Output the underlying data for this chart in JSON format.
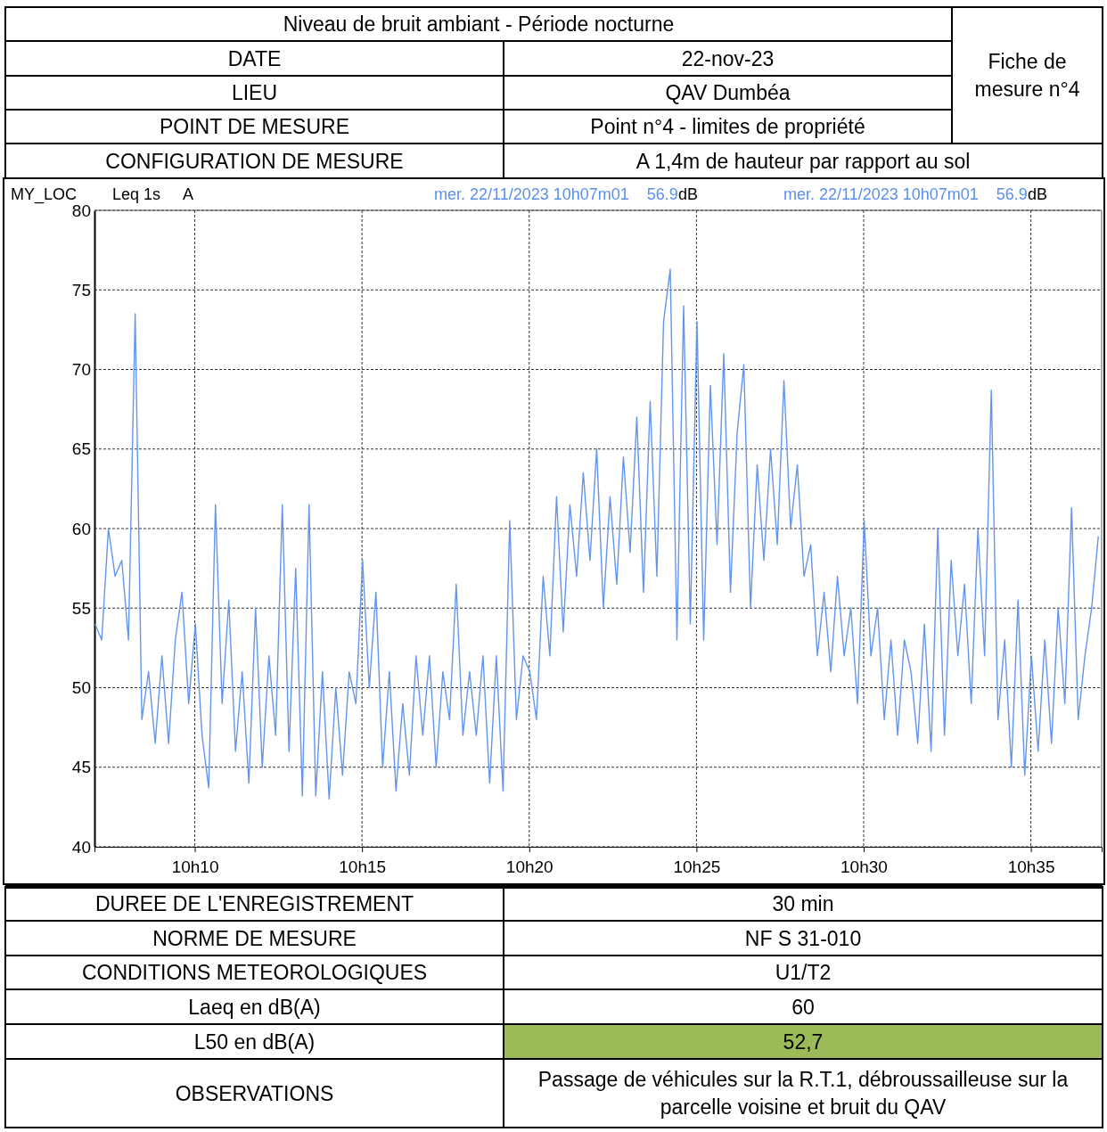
{
  "chart_data": {
    "type": "line",
    "title": "Niveau de bruit ambiant - Période nocturne",
    "x": [
      "2023-11-22T10:07:01",
      "2023-11-22T10:07:13",
      "2023-11-22T10:07:25",
      "2023-11-22T10:07:37",
      "2023-11-22T10:07:49",
      "2023-11-22T10:08:01",
      "2023-11-22T10:08:13",
      "2023-11-22T10:08:25",
      "2023-11-22T10:08:37",
      "2023-11-22T10:08:49",
      "2023-11-22T10:09:01",
      "2023-11-22T10:09:13",
      "2023-11-22T10:09:25",
      "2023-11-22T10:09:37",
      "2023-11-22T10:09:49",
      "2023-11-22T10:10:01",
      "2023-11-22T10:10:13",
      "2023-11-22T10:10:25",
      "2023-11-22T10:10:37",
      "2023-11-22T10:10:49",
      "2023-11-22T10:11:01",
      "2023-11-22T10:11:13",
      "2023-11-22T10:11:25",
      "2023-11-22T10:11:37",
      "2023-11-22T10:11:49",
      "2023-11-22T10:12:01",
      "2023-11-22T10:12:13",
      "2023-11-22T10:12:25",
      "2023-11-22T10:12:37",
      "2023-11-22T10:12:49",
      "2023-11-22T10:13:01",
      "2023-11-22T10:13:13",
      "2023-11-22T10:13:25",
      "2023-11-22T10:13:37",
      "2023-11-22T10:13:49",
      "2023-11-22T10:14:01",
      "2023-11-22T10:14:13",
      "2023-11-22T10:14:25",
      "2023-11-22T10:14:37",
      "2023-11-22T10:14:49",
      "2023-11-22T10:15:01",
      "2023-11-22T10:15:13",
      "2023-11-22T10:15:25",
      "2023-11-22T10:15:37",
      "2023-11-22T10:15:49",
      "2023-11-22T10:16:01",
      "2023-11-22T10:16:13",
      "2023-11-22T10:16:25",
      "2023-11-22T10:16:37",
      "2023-11-22T10:16:49",
      "2023-11-22T10:17:01",
      "2023-11-22T10:17:13",
      "2023-11-22T10:17:25",
      "2023-11-22T10:17:37",
      "2023-11-22T10:17:49",
      "2023-11-22T10:18:01",
      "2023-11-22T10:18:13",
      "2023-11-22T10:18:25",
      "2023-11-22T10:18:37",
      "2023-11-22T10:18:49",
      "2023-11-22T10:19:01",
      "2023-11-22T10:19:13",
      "2023-11-22T10:19:25",
      "2023-11-22T10:19:37",
      "2023-11-22T10:19:49",
      "2023-11-22T10:20:01",
      "2023-11-22T10:20:13",
      "2023-11-22T10:20:25",
      "2023-11-22T10:20:37",
      "2023-11-22T10:20:49",
      "2023-11-22T10:21:01",
      "2023-11-22T10:21:13",
      "2023-11-22T10:21:25",
      "2023-11-22T10:21:37",
      "2023-11-22T10:21:49",
      "2023-11-22T10:22:01",
      "2023-11-22T10:22:13",
      "2023-11-22T10:22:25",
      "2023-11-22T10:22:37",
      "2023-11-22T10:22:49",
      "2023-11-22T10:23:01",
      "2023-11-22T10:23:13",
      "2023-11-22T10:23:25",
      "2023-11-22T10:23:37",
      "2023-11-22T10:23:49",
      "2023-11-22T10:24:01",
      "2023-11-22T10:24:13",
      "2023-11-22T10:24:25",
      "2023-11-22T10:24:37",
      "2023-11-22T10:24:49",
      "2023-11-22T10:25:01",
      "2023-11-22T10:25:13",
      "2023-11-22T10:25:25",
      "2023-11-22T10:25:37",
      "2023-11-22T10:25:49",
      "2023-11-22T10:26:01",
      "2023-11-22T10:26:13",
      "2023-11-22T10:26:25",
      "2023-11-22T10:26:37",
      "2023-11-22T10:26:49",
      "2023-11-22T10:27:01",
      "2023-11-22T10:27:13",
      "2023-11-22T10:27:25",
      "2023-11-22T10:27:37",
      "2023-11-22T10:27:49",
      "2023-11-22T10:28:01",
      "2023-11-22T10:28:13",
      "2023-11-22T10:28:25",
      "2023-11-22T10:28:37",
      "2023-11-22T10:28:49",
      "2023-11-22T10:29:01",
      "2023-11-22T10:29:13",
      "2023-11-22T10:29:25",
      "2023-11-22T10:29:37",
      "2023-11-22T10:29:49",
      "2023-11-22T10:30:01",
      "2023-11-22T10:30:13",
      "2023-11-22T10:30:25",
      "2023-11-22T10:30:37",
      "2023-11-22T10:30:49",
      "2023-11-22T10:31:01",
      "2023-11-22T10:31:13",
      "2023-11-22T10:31:25",
      "2023-11-22T10:31:37",
      "2023-11-22T10:31:49",
      "2023-11-22T10:32:01",
      "2023-11-22T10:32:13",
      "2023-11-22T10:32:25",
      "2023-11-22T10:32:37",
      "2023-11-22T10:32:49",
      "2023-11-22T10:33:01",
      "2023-11-22T10:33:13",
      "2023-11-22T10:33:25",
      "2023-11-22T10:33:37",
      "2023-11-22T10:33:49",
      "2023-11-22T10:34:01",
      "2023-11-22T10:34:13",
      "2023-11-22T10:34:25",
      "2023-11-22T10:34:37",
      "2023-11-22T10:34:49",
      "2023-11-22T10:35:01",
      "2023-11-22T10:35:13",
      "2023-11-22T10:35:25",
      "2023-11-22T10:35:37",
      "2023-11-22T10:35:49",
      "2023-11-22T10:36:01",
      "2023-11-22T10:36:13",
      "2023-11-22T10:36:25",
      "2023-11-22T10:36:37",
      "2023-11-22T10:36:49",
      "2023-11-22T10:37:01"
    ],
    "series": [
      {
        "color": "#6495ed",
        "values": [
          54,
          53,
          60,
          57,
          58,
          53,
          73.5,
          48,
          51,
          46.5,
          52,
          46.5,
          53,
          56,
          49,
          54,
          47,
          43.7,
          61.5,
          49,
          55.5,
          46,
          51,
          44,
          55,
          45,
          52,
          47,
          61.5,
          46,
          57.5,
          43.2,
          61.5,
          43.2,
          51,
          43,
          50,
          44.5,
          51,
          49,
          58,
          50,
          56,
          45,
          51,
          43.5,
          49,
          44.5,
          52,
          47,
          52,
          45,
          51,
          48,
          56.5,
          47,
          51,
          47,
          52,
          44,
          52,
          43.5,
          60.5,
          48,
          52,
          51,
          48,
          57,
          52,
          62,
          53.5,
          61.5,
          57,
          63.5,
          58,
          65,
          55,
          62,
          56.5,
          64.5,
          58.5,
          67,
          56,
          68,
          57,
          73,
          76.3,
          53,
          74,
          54,
          73,
          53,
          69,
          59,
          71,
          56,
          66,
          70.3,
          55,
          64,
          58,
          65,
          59,
          69.3,
          60,
          64,
          57,
          59,
          52,
          56,
          51,
          57,
          52,
          55,
          49,
          60.5,
          52,
          55,
          48,
          53,
          47,
          53,
          51,
          46.5,
          54,
          46,
          60,
          47,
          58,
          52,
          56.5,
          49,
          60,
          52,
          68.7,
          48,
          53,
          45,
          55.5,
          44.5,
          52,
          46,
          53,
          46.5,
          55,
          49,
          61.3,
          48,
          52,
          55,
          59.5
        ]
      }
    ],
    "xlim": [
      "2023-11-22T10:07:00",
      "2023-11-22T10:37:07"
    ],
    "xticks": [
      {
        "value": "2023-11-22T10:10",
        "label": "10h10"
      },
      {
        "value": "2023-11-22T10:15",
        "label": "10h15"
      },
      {
        "value": "2023-11-22T10:20",
        "label": "10h20"
      },
      {
        "value": "2023-11-22T10:25",
        "label": "10h25"
      },
      {
        "value": "2023-11-22T10:30",
        "label": "10h30"
      },
      {
        "value": "2023-11-22T10:35",
        "label": "10h35"
      }
    ],
    "ylim": [
      40,
      80
    ],
    "yticks": [
      40,
      45,
      50,
      55,
      60,
      65,
      70,
      75,
      80
    ],
    "grid": true,
    "line_style": "solid",
    "marker": "none",
    "annotations": [
      "DATE",
      "22-nov-23",
      "LIEU",
      "QAV Dumbéa",
      "POINT DE MESURE",
      "Point n°4 - limites de propriété",
      "CONFIGURATION DE MESURE",
      "A 1,4m de hauteur par rapport au sol",
      "Fiche de mesure n°4",
      "MY_LOC",
      "Leq 1s",
      "A",
      "mer. 22/11/2023 10h07m01",
      "56.9",
      "dB",
      "mer. 22/11/2023 10h07m01",
      "56.9",
      "dB",
      "DUREE DE L'ENREGISTREMENT",
      "30 min",
      "NORME DE MESURE",
      "NF S 31-010",
      "CONDITIONS METEOROLOGIQUES",
      "U1/T2",
      "Laeq en dB(A)",
      "60",
      "L50 en dB(A)",
      "52,7",
      "OBSERVATIONS",
      "Passage de véhicules sur la R.T.1, débroussailleuse sur la parcelle voisine et bruit du QAV"
    ]
  }
}
